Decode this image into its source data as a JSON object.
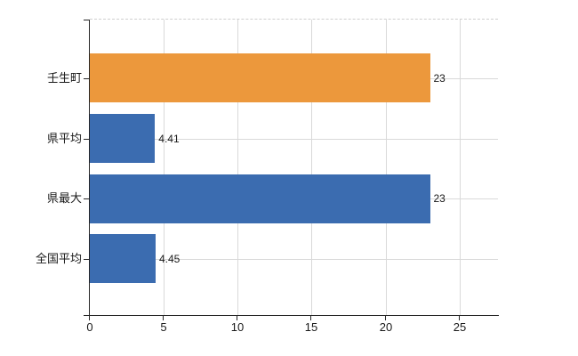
{
  "chart_data": {
    "type": "bar",
    "orientation": "horizontal",
    "title": "",
    "categories": [
      "壬生町",
      "県平均",
      "県最大",
      "全国平均"
    ],
    "values": [
      23,
      4.41,
      23,
      4.45
    ],
    "value_labels": [
      "23",
      "4.41",
      "23",
      "4.45"
    ],
    "bar_colors": [
      "#EC983C",
      "#3B6CB0",
      "#3B6CB0",
      "#3B6CB0"
    ],
    "x_tick_labels": [
      "0",
      "5",
      "10",
      "15",
      "20",
      "25"
    ],
    "x_tick_values": [
      0,
      5,
      10,
      15,
      20,
      25
    ],
    "xlim": [
      0,
      27.6
    ],
    "grid": true,
    "legend_position": "none"
  },
  "colors": {
    "highlight_bar": "#EC983C",
    "default_bar": "#3B6CB0",
    "axis": "#262626",
    "gridline": "#d9d9d9",
    "top_border_dashed": "#cfcfcf",
    "text": "#1a1a1a",
    "background": "#ffffff"
  }
}
